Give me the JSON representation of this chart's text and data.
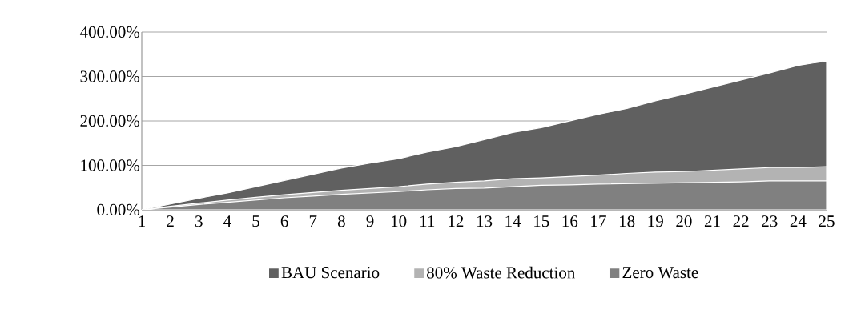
{
  "chart_data": {
    "type": "area",
    "categories": [
      "1",
      "2",
      "3",
      "4",
      "5",
      "6",
      "7",
      "8",
      "9",
      "10",
      "11",
      "12",
      "13",
      "14",
      "15",
      "16",
      "17",
      "18",
      "19",
      "20",
      "21",
      "22",
      "23",
      "24",
      "25"
    ],
    "series": [
      {
        "name": "BAU Scenario",
        "color": "#606060",
        "values": [
          0,
          13,
          26,
          38,
          52,
          66,
          80,
          94,
          105,
          115,
          130,
          142,
          158,
          174,
          185,
          200,
          215,
          228,
          245,
          260,
          276,
          292,
          308,
          325,
          335
        ]
      },
      {
        "name": "80% Waste Reduction",
        "color": "#b3b3b3",
        "values": [
          0,
          8,
          15,
          22,
          28,
          34,
          39,
          44,
          48,
          52,
          58,
          62,
          65,
          70,
          72,
          75,
          78,
          82,
          85,
          86,
          89,
          92,
          95,
          95,
          97
        ]
      },
      {
        "name": "Zero Waste",
        "color": "#808080",
        "values": [
          0,
          6,
          12,
          17,
          22,
          27,
          31,
          35,
          38,
          41,
          45,
          48,
          49,
          52,
          55,
          56,
          58,
          59,
          60,
          61,
          62,
          63,
          65,
          65,
          65
        ]
      }
    ],
    "ylim": [
      0,
      400
    ],
    "yticks": [
      {
        "value": 0,
        "label": "0.00%"
      },
      {
        "value": 100,
        "label": "100.00%"
      },
      {
        "value": 200,
        "label": "200.00%"
      },
      {
        "value": 300,
        "label": "300.00%"
      },
      {
        "value": 400,
        "label": "400.00%"
      }
    ],
    "grid": "y",
    "legend": "bottom"
  }
}
